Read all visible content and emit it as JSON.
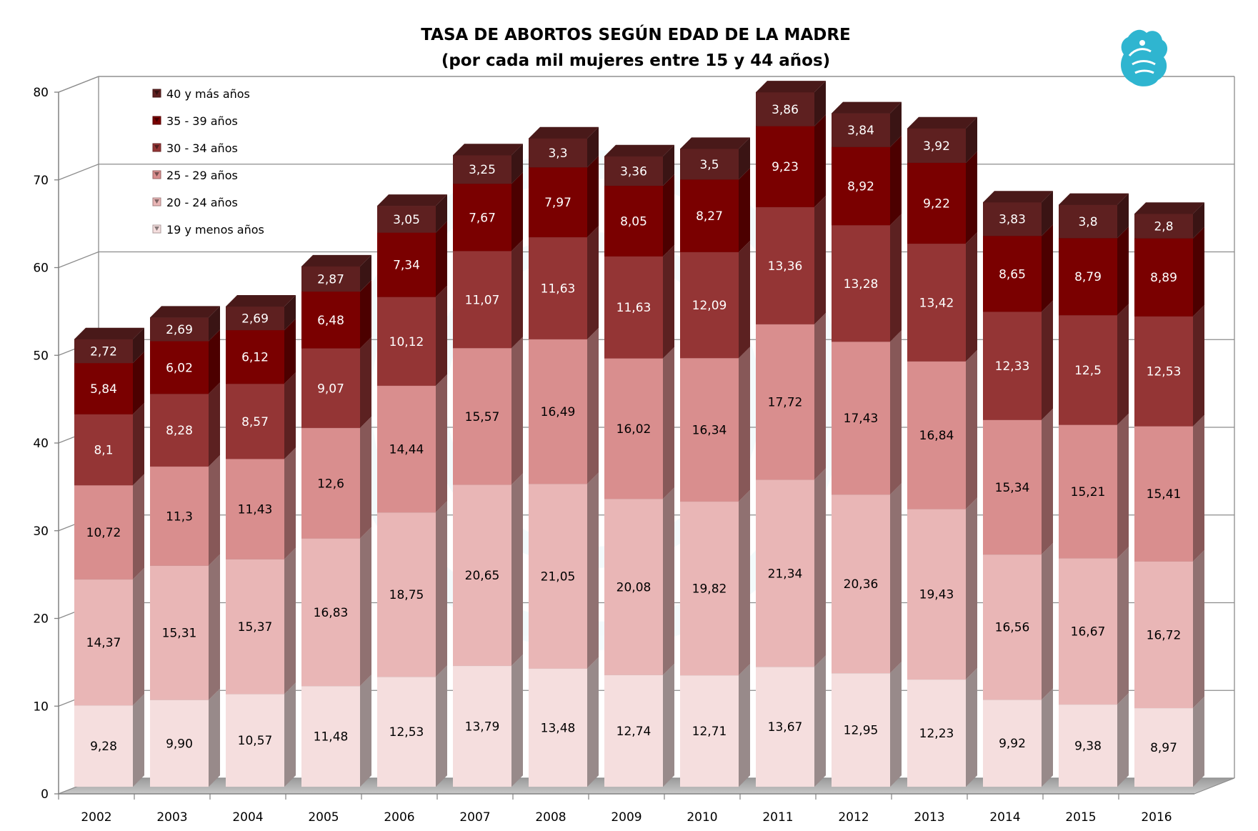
{
  "chart_data": {
    "type": "bar",
    "stacked": true,
    "three_d": true,
    "title": "TASA DE ABORTOS SEGÚN EDAD DE LA MADRE",
    "subtitle": "(por cada mil mujeres entre 15 y 44 años)",
    "xlabel": "",
    "ylabel": "",
    "ylim": [
      0,
      80
    ],
    "yticks": [
      "0",
      "10",
      "20",
      "30",
      "40",
      "50",
      "60",
      "70",
      "80"
    ],
    "grid": true,
    "legend_position": "top-left",
    "categories": [
      "2002",
      "2003",
      "2004",
      "2005",
      "2006",
      "2007",
      "2008",
      "2009",
      "2010",
      "2011",
      "2012",
      "2013",
      "2014",
      "2015",
      "2016"
    ],
    "series": [
      {
        "name": "19 y menos años",
        "color": "#f5dede",
        "label_color": "#000000",
        "values": [
          9.28,
          9.9,
          10.57,
          11.48,
          12.53,
          13.79,
          13.48,
          12.74,
          12.71,
          13.67,
          12.95,
          12.23,
          9.92,
          9.38,
          8.97
        ],
        "labels": [
          "9,28",
          "9,90",
          "10,57",
          "11,48",
          "12,53",
          "13,79",
          "13,48",
          "12,74",
          "12,71",
          "13,67",
          "12,95",
          "12,23",
          "9,92",
          "9,38",
          "8,97"
        ]
      },
      {
        "name": "20 - 24 años",
        "color": "#e9b6b6",
        "label_color": "#000000",
        "values": [
          14.37,
          15.31,
          15.37,
          16.83,
          18.75,
          20.65,
          21.05,
          20.08,
          19.82,
          21.34,
          20.36,
          19.43,
          16.56,
          16.67,
          16.72
        ],
        "labels": [
          "14,37",
          "15,31",
          "15,37",
          "16,83",
          "18,75",
          "20,65",
          "21,05",
          "20,08",
          "19,82",
          "21,34",
          "20,36",
          "19,43",
          "16,56",
          "16,67",
          "16,72"
        ]
      },
      {
        "name": "25 - 29 años",
        "color": "#d98e8e",
        "label_color": "#000000",
        "values": [
          10.72,
          11.3,
          11.43,
          12.6,
          14.44,
          15.57,
          16.49,
          16.02,
          16.34,
          17.72,
          17.43,
          16.84,
          15.34,
          15.21,
          15.41
        ],
        "labels": [
          "10,72",
          "11,3",
          "11,43",
          "12,6",
          "14,44",
          "15,57",
          "16,49",
          "16,02",
          "16,34",
          "17,72",
          "17,43",
          "16,84",
          "15,34",
          "15,21",
          "15,41"
        ]
      },
      {
        "name": "30 - 34 años",
        "color": "#943535",
        "label_color": "#ffffff",
        "values": [
          8.1,
          8.28,
          8.57,
          9.07,
          10.12,
          11.07,
          11.63,
          11.63,
          12.09,
          13.36,
          13.28,
          13.42,
          12.33,
          12.5,
          12.53
        ],
        "labels": [
          "8,1",
          "8,28",
          "8,57",
          "9,07",
          "10,12",
          "11,07",
          "11,63",
          "11,63",
          "12,09",
          "13,36",
          "13,28",
          "13,42",
          "12,33",
          "12,5",
          "12,53"
        ]
      },
      {
        "name": "35 - 39 años",
        "color": "#7a0000",
        "label_color": "#ffffff",
        "values": [
          5.84,
          6.02,
          6.12,
          6.48,
          7.34,
          7.67,
          7.97,
          8.05,
          8.27,
          9.23,
          8.92,
          9.22,
          8.65,
          8.79,
          8.89
        ],
        "labels": [
          "5,84",
          "6,02",
          "6,12",
          "6,48",
          "7,34",
          "7,67",
          "7,97",
          "8,05",
          "8,27",
          "9,23",
          "8,92",
          "9,22",
          "8,65",
          "8,79",
          "8,89"
        ]
      },
      {
        "name": "40 y más años",
        "color": "#5e2020",
        "label_color": "#ffffff",
        "values": [
          2.72,
          2.69,
          2.69,
          2.87,
          3.05,
          3.25,
          3.3,
          3.36,
          3.5,
          3.86,
          3.84,
          3.92,
          3.83,
          3.8,
          2.8
        ],
        "labels": [
          "2,72",
          "2,69",
          "2,69",
          "2,87",
          "3,05",
          "3,25",
          "3,3",
          "3,36",
          "3,5",
          "3,86",
          "3,84",
          "3,92",
          "3,83",
          "3,8",
          "2,8"
        ]
      }
    ]
  },
  "colors": {
    "grid": "#8c8c8c",
    "floor": "#a6a6a6",
    "axis": "#808080",
    "logo": "#2fb5d0"
  },
  "icons": {
    "logo": "griffin-logo-icon",
    "legend_marker": "square-bullet-icon"
  }
}
